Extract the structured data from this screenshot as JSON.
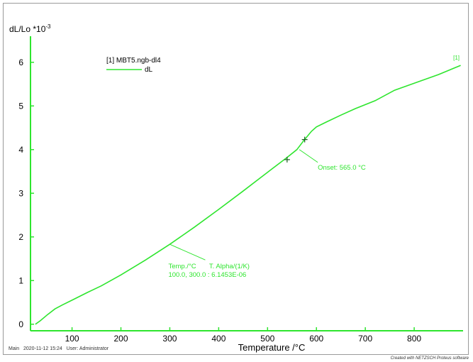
{
  "colors": {
    "curve": "#2ee52e",
    "axis": "#2ee52e",
    "text": "#000000"
  },
  "chart_data": {
    "type": "line",
    "ylabel_main": "dL/Lo *10",
    "ylabel_exp": "-3",
    "xlabel": "Temperature /°C",
    "xlim": [
      15,
      900
    ],
    "ylim": [
      -0.15,
      6.5
    ],
    "x_ticks": [
      100,
      200,
      300,
      400,
      500,
      600,
      700,
      800
    ],
    "y_ticks": [
      0,
      1,
      2,
      3,
      4,
      5,
      6
    ],
    "legend": {
      "title": "[1] MBT5.ngb-dl4",
      "entry": "dL",
      "placement": "top-left"
    },
    "series": [
      {
        "name": "dL",
        "end_label": "[1]",
        "x": [
          25,
          35,
          50,
          65,
          80,
          100,
          130,
          160,
          200,
          250,
          300,
          350,
          400,
          450,
          500,
          540,
          560,
          575,
          590,
          600,
          620,
          650,
          680,
          720,
          760,
          800,
          850,
          895
        ],
        "y": [
          0.0,
          0.08,
          0.22,
          0.35,
          0.44,
          0.55,
          0.72,
          0.88,
          1.13,
          1.47,
          1.83,
          2.22,
          2.63,
          3.05,
          3.48,
          3.82,
          4.0,
          4.22,
          4.42,
          4.52,
          4.63,
          4.79,
          4.94,
          5.12,
          5.36,
          5.52,
          5.72,
          5.93
        ]
      }
    ],
    "annotations": [
      {
        "kind": "marker",
        "x": 540,
        "y": 3.77
      },
      {
        "kind": "marker",
        "x": 576,
        "y": 4.23
      },
      {
        "kind": "text",
        "label": "Onset: 565.0 °C"
      },
      {
        "kind": "text",
        "label": "Temp./°C       T. Alpha/(1/K)"
      },
      {
        "kind": "text",
        "label": "100.0, 300.0 : 6.1453E-06"
      }
    ]
  },
  "footer": {
    "left": "Main   2020-11-12 15:24   User: Administrator",
    "right": "Created with NETZSCH Proteus software"
  }
}
